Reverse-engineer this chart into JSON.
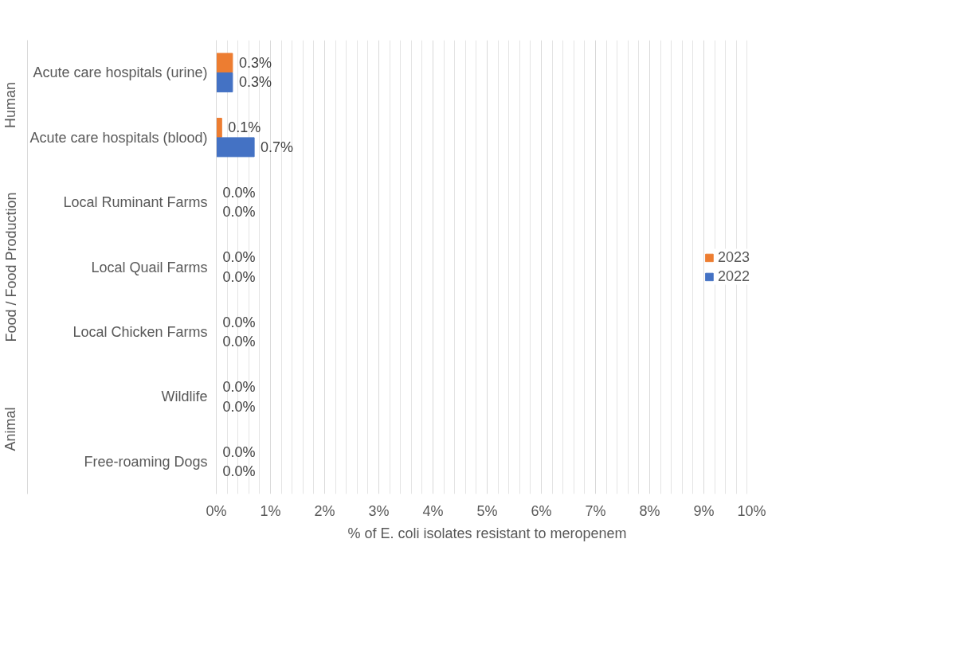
{
  "chart_data": {
    "type": "bar",
    "orientation": "horizontal",
    "xlabel": "% of E. coli isolates resistant to meropenem",
    "categories": [
      "Acute care hospitals (urine)",
      "Acute care hospitals (blood)",
      "Local Ruminant Farms",
      "Local Quail Farms",
      "Local Chicken Farms",
      "Wildlife",
      "Free-roaming Dogs"
    ],
    "series": [
      {
        "name": "2023",
        "color": "#ed7d31",
        "values": [
          0.3,
          0.1,
          0,
          0,
          0,
          0,
          0
        ],
        "value_labels": [
          "0.3%",
          "0.1%",
          "0.0%",
          "0.0%",
          "0.0%",
          "0.0%",
          "0.0%"
        ]
      },
      {
        "name": "2022",
        "color": "#4472c4",
        "values": [
          0.3,
          0.7,
          0,
          0,
          0,
          0,
          0
        ],
        "value_labels": [
          "0.3%",
          "0.7%",
          "0.0%",
          "0.0%",
          "0.0%",
          "0.0%",
          "0.0%"
        ]
      }
    ],
    "annotations": [
      "Human",
      "Food / Food Production",
      "Animal"
    ],
    "xlim": [
      0,
      10
    ],
    "xticks": [
      {
        "value": 0,
        "label": "0%"
      },
      {
        "value": 1,
        "label": "1%"
      },
      {
        "value": 2,
        "label": "2%"
      },
      {
        "value": 3,
        "label": "3%"
      },
      {
        "value": 4,
        "label": "4%"
      },
      {
        "value": 5,
        "label": "5%"
      },
      {
        "value": 6,
        "label": "6%"
      },
      {
        "value": 7,
        "label": "7%"
      },
      {
        "value": 8,
        "label": "8%"
      },
      {
        "value": 9,
        "label": "9%"
      },
      {
        "value": 10,
        "label": "10%"
      }
    ],
    "grid": "x",
    "legend": "right"
  }
}
